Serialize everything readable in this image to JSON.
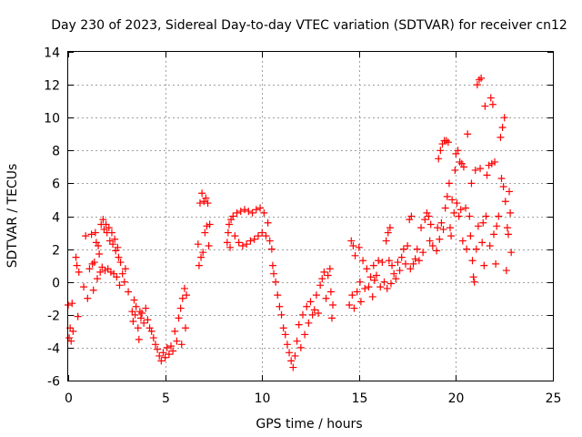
{
  "chart_data": {
    "type": "scatter",
    "title": "Day 230 of 2023, Sidereal Day-to-day VTEC variation (SDTVAR) for receiver cn12",
    "xlabel": "GPS time / hours",
    "ylabel": "SDTVAR / TECUs",
    "xlim": [
      0,
      25
    ],
    "ylim": [
      -6,
      14
    ],
    "xticks": [
      0,
      5,
      10,
      15,
      20,
      25
    ],
    "xtick_labels": [
      "0",
      "5",
      "10",
      "15",
      "20",
      "25"
    ],
    "yticks": [
      -6,
      -4,
      -2,
      0,
      2,
      4,
      6,
      8,
      10,
      12,
      14
    ],
    "ytick_labels": [
      "-6",
      "-4",
      "-2",
      "0",
      "2",
      "4",
      "6",
      "8",
      "10",
      "12",
      "14"
    ],
    "grid": true,
    "marker": "+",
    "color": "#ff0000",
    "series": [
      {
        "name": "SDTVAR",
        "points": [
          [
            0.0,
            -1.4
          ],
          [
            0.05,
            -3.4
          ],
          [
            0.1,
            -2.8
          ],
          [
            0.15,
            -3.6
          ],
          [
            0.2,
            -1.3
          ],
          [
            0.25,
            -3.0
          ],
          [
            0.4,
            1.5
          ],
          [
            0.45,
            1.0
          ],
          [
            0.5,
            -2.1
          ],
          [
            0.55,
            0.6
          ],
          [
            0.8,
            -0.3
          ],
          [
            0.9,
            2.8
          ],
          [
            1.0,
            -1.0
          ],
          [
            1.1,
            0.8
          ],
          [
            1.2,
            2.9
          ],
          [
            1.25,
            1.1
          ],
          [
            1.3,
            -0.5
          ],
          [
            1.35,
            1.2
          ],
          [
            1.4,
            3.0
          ],
          [
            1.45,
            2.4
          ],
          [
            1.5,
            0.2
          ],
          [
            1.55,
            2.2
          ],
          [
            1.6,
            1.7
          ],
          [
            1.65,
            0.6
          ],
          [
            1.7,
            3.5
          ],
          [
            1.75,
            0.9
          ],
          [
            1.8,
            3.8
          ],
          [
            1.85,
            3.2
          ],
          [
            1.9,
            0.7
          ],
          [
            1.95,
            3.5
          ],
          [
            2.0,
            3.0
          ],
          [
            2.05,
            0.8
          ],
          [
            2.1,
            3.3
          ],
          [
            2.15,
            2.5
          ],
          [
            2.2,
            0.6
          ],
          [
            2.25,
            3.0
          ],
          [
            2.3,
            2.3
          ],
          [
            2.35,
            0.5
          ],
          [
            2.4,
            2.6
          ],
          [
            2.45,
            1.9
          ],
          [
            2.5,
            0.3
          ],
          [
            2.55,
            2.1
          ],
          [
            2.6,
            1.5
          ],
          [
            2.65,
            -0.2
          ],
          [
            2.7,
            1.2
          ],
          [
            2.8,
            0.5
          ],
          [
            2.9,
            0.0
          ],
          [
            2.95,
            0.8
          ],
          [
            3.1,
            -0.6
          ],
          [
            3.3,
            -1.8
          ],
          [
            3.35,
            -2.4
          ],
          [
            3.4,
            -1.1
          ],
          [
            3.45,
            -2.0
          ],
          [
            3.5,
            -1.5
          ],
          [
            3.6,
            -2.8
          ],
          [
            3.65,
            -3.5
          ],
          [
            3.7,
            -1.8
          ],
          [
            3.75,
            -2.2
          ],
          [
            3.8,
            -1.9
          ],
          [
            3.9,
            -2.5
          ],
          [
            4.0,
            -1.6
          ],
          [
            4.1,
            -2.3
          ],
          [
            4.2,
            -2.8
          ],
          [
            4.3,
            -3.0
          ],
          [
            4.4,
            -3.4
          ],
          [
            4.5,
            -3.8
          ],
          [
            4.6,
            -4.1
          ],
          [
            4.7,
            -4.5
          ],
          [
            4.8,
            -4.8
          ],
          [
            4.9,
            -4.3
          ],
          [
            5.0,
            -4.6
          ],
          [
            5.1,
            -4.0
          ],
          [
            5.2,
            -4.4
          ],
          [
            5.3,
            -3.9
          ],
          [
            5.4,
            -4.2
          ],
          [
            5.5,
            -3.0
          ],
          [
            5.6,
            -3.6
          ],
          [
            5.7,
            -2.2
          ],
          [
            5.8,
            -1.6
          ],
          [
            5.85,
            -3.8
          ],
          [
            5.9,
            -1.0
          ],
          [
            6.0,
            -0.4
          ],
          [
            6.05,
            -2.8
          ],
          [
            6.1,
            -0.8
          ],
          [
            6.7,
            2.3
          ],
          [
            6.75,
            1.0
          ],
          [
            6.8,
            4.8
          ],
          [
            6.85,
            1.5
          ],
          [
            6.9,
            5.4
          ],
          [
            6.95,
            1.8
          ],
          [
            7.0,
            4.9
          ],
          [
            7.05,
            3.0
          ],
          [
            7.1,
            5.1
          ],
          [
            7.15,
            3.4
          ],
          [
            7.2,
            4.8
          ],
          [
            7.25,
            2.2
          ],
          [
            7.3,
            3.5
          ],
          [
            8.2,
            2.4
          ],
          [
            8.25,
            3.0
          ],
          [
            8.3,
            3.5
          ],
          [
            8.35,
            2.1
          ],
          [
            8.4,
            3.8
          ],
          [
            8.5,
            4.0
          ],
          [
            8.6,
            2.8
          ],
          [
            8.7,
            4.2
          ],
          [
            8.8,
            2.4
          ],
          [
            8.9,
            4.3
          ],
          [
            9.0,
            2.2
          ],
          [
            9.1,
            4.4
          ],
          [
            9.2,
            2.3
          ],
          [
            9.3,
            4.3
          ],
          [
            9.4,
            2.5
          ],
          [
            9.5,
            4.2
          ],
          [
            9.6,
            2.6
          ],
          [
            9.7,
            4.4
          ],
          [
            9.8,
            2.8
          ],
          [
            9.9,
            4.5
          ],
          [
            10.0,
            3.0
          ],
          [
            10.1,
            4.2
          ],
          [
            10.2,
            2.8
          ],
          [
            10.3,
            3.6
          ],
          [
            10.4,
            2.5
          ],
          [
            10.5,
            2.0
          ],
          [
            10.55,
            1.0
          ],
          [
            10.6,
            0.5
          ],
          [
            10.7,
            0.0
          ],
          [
            10.8,
            -0.8
          ],
          [
            10.9,
            -1.5
          ],
          [
            11.0,
            -2.0
          ],
          [
            11.1,
            -2.8
          ],
          [
            11.2,
            -3.2
          ],
          [
            11.3,
            -3.8
          ],
          [
            11.4,
            -4.3
          ],
          [
            11.5,
            -4.8
          ],
          [
            11.6,
            -5.2
          ],
          [
            11.7,
            -4.5
          ],
          [
            11.8,
            -3.6
          ],
          [
            11.9,
            -2.6
          ],
          [
            12.0,
            -4.0
          ],
          [
            12.1,
            -2.0
          ],
          [
            12.2,
            -3.2
          ],
          [
            12.3,
            -1.5
          ],
          [
            12.4,
            -2.5
          ],
          [
            12.5,
            -1.2
          ],
          [
            12.6,
            -2.0
          ],
          [
            12.7,
            -1.7
          ],
          [
            12.8,
            -0.8
          ],
          [
            12.9,
            -1.9
          ],
          [
            13.0,
            -0.2
          ],
          [
            13.1,
            0.2
          ],
          [
            13.2,
            0.6
          ],
          [
            13.3,
            -1.0
          ],
          [
            13.4,
            0.4
          ],
          [
            13.5,
            0.8
          ],
          [
            13.55,
            -0.6
          ],
          [
            13.6,
            -2.2
          ],
          [
            13.65,
            -1.4
          ],
          [
            14.5,
            -1.4
          ],
          [
            14.6,
            2.5
          ],
          [
            14.65,
            -0.8
          ],
          [
            14.7,
            2.2
          ],
          [
            14.75,
            -1.6
          ],
          [
            14.8,
            1.6
          ],
          [
            14.9,
            -0.6
          ],
          [
            15.0,
            2.1
          ],
          [
            15.05,
            0.0
          ],
          [
            15.1,
            -1.2
          ],
          [
            15.2,
            1.3
          ],
          [
            15.3,
            -0.4
          ],
          [
            15.4,
            0.8
          ],
          [
            15.5,
            -0.3
          ],
          [
            15.6,
            0.3
          ],
          [
            15.7,
            -0.9
          ],
          [
            15.75,
            1.0
          ],
          [
            15.8,
            0.1
          ],
          [
            15.9,
            0.4
          ],
          [
            16.0,
            1.3
          ],
          [
            16.1,
            -0.3
          ],
          [
            16.2,
            1.2
          ],
          [
            16.3,
            0.0
          ],
          [
            16.4,
            2.5
          ],
          [
            16.45,
            -0.4
          ],
          [
            16.5,
            3.0
          ],
          [
            16.55,
            1.3
          ],
          [
            16.6,
            3.3
          ],
          [
            16.65,
            -0.1
          ],
          [
            16.7,
            1.0
          ],
          [
            16.8,
            0.5
          ],
          [
            16.9,
            0.2
          ],
          [
            17.0,
            1.2
          ],
          [
            17.1,
            0.7
          ],
          [
            17.2,
            1.5
          ],
          [
            17.3,
            2.0
          ],
          [
            17.4,
            1.1
          ],
          [
            17.5,
            2.2
          ],
          [
            17.6,
            3.8
          ],
          [
            17.65,
            0.8
          ],
          [
            17.7,
            4.0
          ],
          [
            17.8,
            1.1
          ],
          [
            17.9,
            1.4
          ],
          [
            18.0,
            2.0
          ],
          [
            18.1,
            1.3
          ],
          [
            18.2,
            3.3
          ],
          [
            18.3,
            1.8
          ],
          [
            18.4,
            3.8
          ],
          [
            18.5,
            4.2
          ],
          [
            18.6,
            4.0
          ],
          [
            18.65,
            2.5
          ],
          [
            18.7,
            3.5
          ],
          [
            18.8,
            2.2
          ],
          [
            19.0,
            1.9
          ],
          [
            19.05,
            3.3
          ],
          [
            19.1,
            7.5
          ],
          [
            19.15,
            2.6
          ],
          [
            19.2,
            8.0
          ],
          [
            19.25,
            3.6
          ],
          [
            19.3,
            8.4
          ],
          [
            19.35,
            3.2
          ],
          [
            19.4,
            8.6
          ],
          [
            19.45,
            4.5
          ],
          [
            19.5,
            8.6
          ],
          [
            19.55,
            5.2
          ],
          [
            19.6,
            8.5
          ],
          [
            19.65,
            6.0
          ],
          [
            19.7,
            3.3
          ],
          [
            19.75,
            2.8
          ],
          [
            19.8,
            5.0
          ],
          [
            19.9,
            4.2
          ],
          [
            19.95,
            6.8
          ],
          [
            20.0,
            7.8
          ],
          [
            20.05,
            4.8
          ],
          [
            20.1,
            8.0
          ],
          [
            20.15,
            4.0
          ],
          [
            20.2,
            7.3
          ],
          [
            20.25,
            4.4
          ],
          [
            20.3,
            7.2
          ],
          [
            20.35,
            2.5
          ],
          [
            20.4,
            7.0
          ],
          [
            20.5,
            4.5
          ],
          [
            20.55,
            2.0
          ],
          [
            20.6,
            9.0
          ],
          [
            20.7,
            4.0
          ],
          [
            20.75,
            2.8
          ],
          [
            20.8,
            6.0
          ],
          [
            20.85,
            1.3
          ],
          [
            20.9,
            0.3
          ],
          [
            20.95,
            0.0
          ],
          [
            21.0,
            6.8
          ],
          [
            21.05,
            2.0
          ],
          [
            21.1,
            12.0
          ],
          [
            21.15,
            3.4
          ],
          [
            21.2,
            12.3
          ],
          [
            21.25,
            6.9
          ],
          [
            21.3,
            12.4
          ],
          [
            21.35,
            2.4
          ],
          [
            21.4,
            3.6
          ],
          [
            21.45,
            1.0
          ],
          [
            21.5,
            10.7
          ],
          [
            21.55,
            4.0
          ],
          [
            21.6,
            6.5
          ],
          [
            21.7,
            7.1
          ],
          [
            21.75,
            2.2
          ],
          [
            21.8,
            11.2
          ],
          [
            21.85,
            7.2
          ],
          [
            21.9,
            10.8
          ],
          [
            21.95,
            2.9
          ],
          [
            22.0,
            7.3
          ],
          [
            22.05,
            1.1
          ],
          [
            22.1,
            3.4
          ],
          [
            22.2,
            4.0
          ],
          [
            22.3,
            8.8
          ],
          [
            22.35,
            6.3
          ],
          [
            22.4,
            9.4
          ],
          [
            22.45,
            5.8
          ],
          [
            22.5,
            10.0
          ],
          [
            22.55,
            4.9
          ],
          [
            22.6,
            0.7
          ],
          [
            22.65,
            3.3
          ],
          [
            22.7,
            2.9
          ],
          [
            22.75,
            5.5
          ],
          [
            22.8,
            4.2
          ],
          [
            22.85,
            1.8
          ]
        ]
      }
    ]
  }
}
